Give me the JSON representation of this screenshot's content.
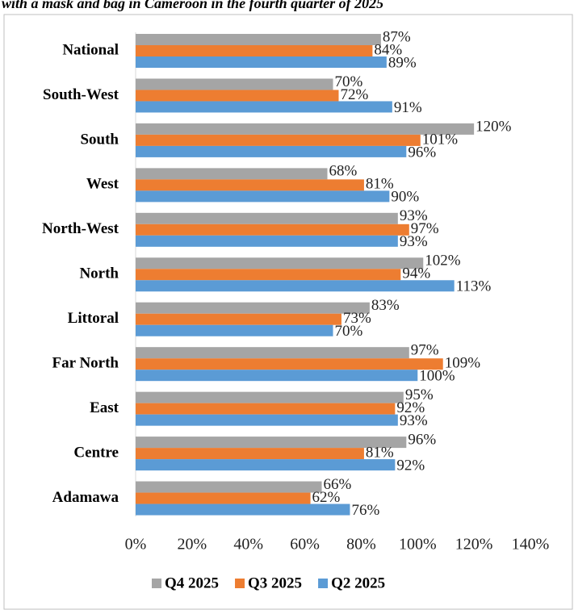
{
  "chart_data": {
    "type": "bar",
    "orientation": "horizontal",
    "title": "with a mask and bag in Cameroon in the fourth quarter of 2025",
    "categories": [
      "National",
      "South-West",
      "South",
      "West",
      "North-West",
      "North",
      "Littoral",
      "Far North",
      "East",
      "Centre",
      "Adamawa"
    ],
    "series": [
      {
        "name": "Q4 2025",
        "color": "#a5a5a5",
        "values": [
          87,
          70,
          120,
          68,
          93,
          102,
          83,
          97,
          95,
          96,
          66
        ],
        "value_labels": [
          "87%",
          "70%",
          "120%",
          "68%",
          "93%",
          "102%",
          "83%",
          "97%",
          "95%",
          "96%",
          "66%"
        ]
      },
      {
        "name": "Q3 2025",
        "color": "#ed7d31",
        "values": [
          84,
          72,
          101,
          81,
          97,
          94,
          73,
          109,
          92,
          81,
          62
        ],
        "value_labels": [
          "84%",
          "72%",
          "101%",
          "81%",
          "97%",
          "94%",
          "73%",
          "109%",
          "92%",
          "81%",
          "62%"
        ]
      },
      {
        "name": "Q2 2025",
        "color": "#5b9bd5",
        "values": [
          89,
          91,
          96,
          90,
          93,
          113,
          70,
          100,
          93,
          92,
          76
        ],
        "value_labels": [
          "89%",
          "91%",
          "96%",
          "90%",
          "93%",
          "113%",
          "70%",
          "100%",
          "93%",
          "92%",
          "76%"
        ]
      }
    ],
    "xlim": [
      0,
      140
    ],
    "xticks": [
      {
        "value": 0,
        "label": "0%"
      },
      {
        "value": 20,
        "label": "20%"
      },
      {
        "value": 40,
        "label": "40%"
      },
      {
        "value": 60,
        "label": "60%"
      },
      {
        "value": 80,
        "label": "80%"
      },
      {
        "value": 100,
        "label": "100%"
      },
      {
        "value": 120,
        "label": "120%"
      },
      {
        "value": 140,
        "label": "140%"
      }
    ],
    "legend": "bottom"
  }
}
